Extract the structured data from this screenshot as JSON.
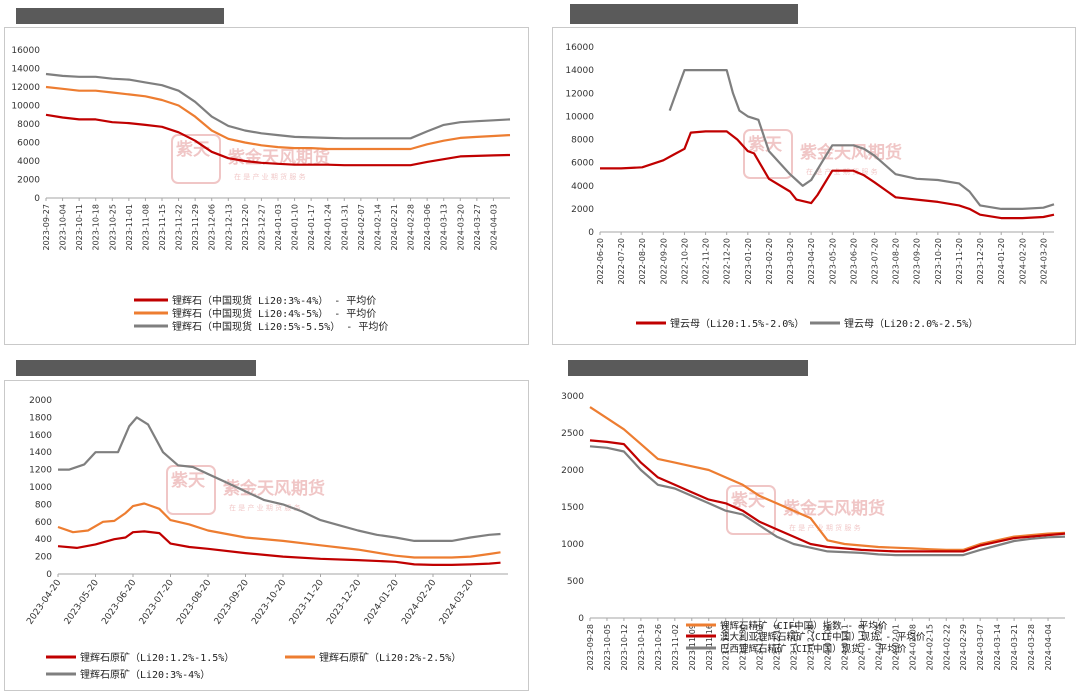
{
  "watermark": {
    "brand": "紫金天风期货",
    "slogan": "在 是 产 业 期 货 服 务",
    "seal": "紫天金风"
  },
  "chart_data": [
    {
      "type": "line",
      "title": "",
      "ylim": [
        0,
        16000
      ],
      "yticks": [
        "0",
        "2000",
        "4000",
        "6000",
        "8000",
        "10000",
        "12000",
        "14000",
        "16000"
      ],
      "xticks": [
        "2023-09-27",
        "2023-10-04",
        "2023-10-11",
        "2023-10-18",
        "2023-10-25",
        "2023-11-01",
        "2023-11-08",
        "2023-11-15",
        "2023-11-22",
        "2023-11-29",
        "2023-12-06",
        "2023-12-13",
        "2023-12-20",
        "2023-12-27",
        "2024-01-03",
        "2024-01-10",
        "2024-01-17",
        "2024-01-24",
        "2024-01-31",
        "2024-02-07",
        "2024-02-14",
        "2024-02-21",
        "2024-02-28",
        "2024-03-06",
        "2024-03-13",
        "2024-03-20",
        "2024-03-27",
        "2024-04-03"
      ],
      "series": [
        {
          "name": "锂辉石（中国现货 Li20:3%-4%） - 平均价",
          "color": "#c00000",
          "x": [
            0,
            1,
            2,
            3,
            4,
            5,
            6,
            7,
            8,
            9,
            10,
            11,
            12,
            13,
            14,
            15,
            16,
            17,
            18,
            19,
            20,
            21,
            22,
            23,
            24,
            25,
            26,
            27,
            28
          ],
          "values": [
            9000,
            8700,
            8500,
            8500,
            8200,
            8100,
            7900,
            7700,
            7100,
            6200,
            5000,
            4300,
            4000,
            3800,
            3700,
            3600,
            3600,
            3600,
            3550,
            3550,
            3550,
            3550,
            3550,
            3900,
            4200,
            4500,
            4550,
            4600,
            4650
          ]
        },
        {
          "name": "锂辉石（中国现货 Li20:4%-5%） - 平均价",
          "color": "#ed7d31",
          "x": [
            0,
            1,
            2,
            3,
            4,
            5,
            6,
            7,
            8,
            9,
            10,
            11,
            12,
            13,
            14,
            15,
            16,
            17,
            18,
            19,
            20,
            21,
            22,
            23,
            24,
            25,
            26,
            27,
            28
          ],
          "values": [
            12000,
            11800,
            11600,
            11600,
            11400,
            11200,
            11000,
            10600,
            10000,
            8800,
            7300,
            6400,
            6000,
            5700,
            5500,
            5400,
            5400,
            5300,
            5300,
            5300,
            5300,
            5300,
            5300,
            5800,
            6200,
            6500,
            6600,
            6700,
            6800
          ]
        },
        {
          "name": "锂辉石（中国现货 Li20:5%-5.5%） - 平均价",
          "color": "#7f7f7f",
          "x": [
            0,
            1,
            2,
            3,
            4,
            5,
            6,
            7,
            8,
            9,
            10,
            11,
            12,
            13,
            14,
            15,
            16,
            17,
            18,
            19,
            20,
            21,
            22,
            23,
            24,
            25,
            26,
            27,
            28
          ],
          "values": [
            13400,
            13200,
            13100,
            13100,
            12900,
            12800,
            12500,
            12200,
            11600,
            10400,
            8800,
            7800,
            7300,
            7000,
            6800,
            6600,
            6550,
            6500,
            6450,
            6450,
            6450,
            6450,
            6450,
            7200,
            7900,
            8200,
            8300,
            8400,
            8500
          ]
        }
      ]
    },
    {
      "type": "line",
      "title": "",
      "ylim": [
        0,
        16000
      ],
      "yticks": [
        "0",
        "2000",
        "4000",
        "6000",
        "8000",
        "10000",
        "12000",
        "14000",
        "16000"
      ],
      "xticks": [
        "2022-06-20",
        "2022-07-20",
        "2022-08-20",
        "2022-09-20",
        "2022-10-20",
        "2022-11-20",
        "2022-12-20",
        "2023-01-20",
        "2023-02-20",
        "2023-03-20",
        "2023-04-20",
        "2023-05-20",
        "2023-06-20",
        "2023-07-20",
        "2023-08-20",
        "2023-09-20",
        "2023-10-20",
        "2023-11-20",
        "2023-12-20",
        "2024-01-20",
        "2024-02-20",
        "2024-03-20"
      ],
      "series": [
        {
          "name": "锂云母（Li20:1.5%-2.0%）",
          "color": "#c00000",
          "x": [
            0,
            1,
            2,
            3,
            3.5,
            4,
            4.3,
            5,
            6,
            6.5,
            7,
            7.3,
            8,
            9,
            9.3,
            10,
            10.3,
            11,
            12,
            12.5,
            13,
            14,
            15,
            16,
            17,
            17.5,
            18,
            19,
            20,
            21,
            21.5
          ],
          "values": [
            5500,
            5500,
            5600,
            6200,
            6700,
            7200,
            8600,
            8700,
            8700,
            8000,
            7000,
            6800,
            4600,
            3500,
            2800,
            2500,
            3200,
            5300,
            5300,
            4900,
            4300,
            3000,
            2800,
            2600,
            2300,
            2000,
            1500,
            1200,
            1200,
            1300,
            1500
          ]
        },
        {
          "name": "锂云母（Li20:2.0%-2.5%）",
          "color": "#7f7f7f",
          "x": [
            3.3,
            3.5,
            3.8,
            4,
            5,
            6,
            6.3,
            6.6,
            7,
            7.5,
            8,
            9,
            9.3,
            9.6,
            10,
            10.5,
            11,
            12,
            12.5,
            13,
            14,
            15,
            16,
            17,
            17.5,
            18,
            19,
            20,
            21,
            21.5
          ],
          "values": [
            10500,
            11500,
            13000,
            14000,
            14000,
            14000,
            12000,
            10500,
            10000,
            9700,
            7000,
            5000,
            4500,
            4000,
            4500,
            6000,
            7500,
            7500,
            7200,
            6600,
            5000,
            4600,
            4500,
            4200,
            3500,
            2300,
            2000,
            2000,
            2100,
            2400
          ]
        }
      ]
    },
    {
      "type": "line",
      "title": "",
      "ylim": [
        0,
        2000
      ],
      "yticks": [
        "0",
        "200",
        "400",
        "600",
        "800",
        "1000",
        "1200",
        "1400",
        "1600",
        "1800",
        "2000"
      ],
      "xticks": [
        "2023-04-20",
        "2023-05-20",
        "2023-06-20",
        "2023-07-20",
        "2023-08-20",
        "2023-09-20",
        "2023-10-20",
        "2023-11-20",
        "2023-12-20",
        "2024-01-20",
        "2024-02-20",
        "2024-03-20"
      ],
      "series": [
        {
          "name": "锂辉石原矿（Li20:1.2%-1.5%）",
          "color": "#c00000",
          "x": [
            0,
            0.5,
            1,
            1.5,
            1.8,
            2,
            2.3,
            2.7,
            3,
            3.5,
            4,
            5,
            6,
            7,
            8,
            9,
            9.5,
            10,
            10.5,
            11,
            11.5,
            11.8
          ],
          "values": [
            320,
            300,
            340,
            400,
            420,
            480,
            490,
            470,
            350,
            310,
            290,
            240,
            200,
            175,
            160,
            140,
            110,
            105,
            105,
            110,
            120,
            130
          ]
        },
        {
          "name": "锂辉石原矿（Li20:2%-2.5%）",
          "color": "#ed7d31",
          "x": [
            0,
            0.4,
            0.8,
            1.2,
            1.5,
            1.8,
            2,
            2.3,
            2.7,
            3,
            3.5,
            4,
            5,
            6,
            7,
            8,
            9,
            9.5,
            10,
            10.5,
            11,
            11.5,
            11.8
          ],
          "values": [
            540,
            480,
            500,
            600,
            610,
            700,
            780,
            810,
            750,
            620,
            570,
            500,
            420,
            380,
            330,
            280,
            210,
            190,
            190,
            190,
            200,
            230,
            250
          ]
        },
        {
          "name": "锂辉石原矿（Li20:3%-4%）",
          "color": "#7f7f7f",
          "x": [
            0,
            0.3,
            0.7,
            1,
            1.3,
            1.6,
            1.9,
            2.1,
            2.4,
            2.8,
            3.2,
            3.6,
            4,
            4.5,
            5,
            5.5,
            6,
            6.5,
            7,
            7.5,
            8,
            8.5,
            9,
            9.5,
            10,
            10.5,
            11,
            11.5,
            11.8
          ],
          "values": [
            1200,
            1200,
            1260,
            1400,
            1400,
            1400,
            1700,
            1800,
            1720,
            1400,
            1250,
            1230,
            1150,
            1050,
            950,
            850,
            800,
            720,
            620,
            560,
            500,
            450,
            420,
            380,
            380,
            380,
            420,
            450,
            460
          ]
        }
      ]
    },
    {
      "type": "line",
      "title": "",
      "ylim": [
        0,
        3000
      ],
      "yticks": [
        "0",
        "500",
        "1000",
        "1500",
        "2000",
        "2500",
        "3000"
      ],
      "xticks": [
        "2023-09-28",
        "2023-10-05",
        "2023-10-12",
        "2023-10-19",
        "2023-10-26",
        "2023-11-02",
        "2023-11-09",
        "2023-11-16",
        "2023-11-23",
        "2023-11-30",
        "2023-12-07",
        "2023-12-14",
        "2023-12-21",
        "2023-12-28",
        "2024-01-04",
        "2024-01-11",
        "2024-01-18",
        "2024-01-25",
        "2024-02-01",
        "2024-02-08",
        "2024-02-15",
        "2024-02-22",
        "2024-02-29",
        "2024-03-07",
        "2024-03-14",
        "2024-03-21",
        "2024-03-28",
        "2024-04-04"
      ],
      "series": [
        {
          "name": "锂辉石精矿（CIF中国）指数 - 平均价",
          "color": "#ed7d31",
          "x": [
            0,
            1,
            2,
            3,
            4,
            5,
            6,
            7,
            8,
            9,
            10,
            11,
            12,
            13,
            14,
            15,
            16,
            17,
            18,
            19,
            20,
            21,
            22,
            23,
            24,
            25,
            26,
            27,
            28
          ],
          "values": [
            2850,
            2700,
            2550,
            2350,
            2150,
            2100,
            2050,
            2000,
            1900,
            1800,
            1650,
            1550,
            1450,
            1350,
            1050,
            1000,
            980,
            960,
            950,
            940,
            930,
            920,
            920,
            1000,
            1050,
            1100,
            1120,
            1140,
            1150
          ]
        },
        {
          "name": "澳大利亚锂辉石精矿（CIF中国）现货 - 平均价",
          "color": "#c00000",
          "x": [
            0,
            1,
            2,
            3,
            4,
            5,
            6,
            7,
            8,
            9,
            10,
            11,
            12,
            13,
            14,
            15,
            16,
            17,
            18,
            19,
            20,
            21,
            22,
            23,
            24,
            25,
            26,
            27,
            28
          ],
          "values": [
            2400,
            2380,
            2350,
            2100,
            1900,
            1800,
            1700,
            1600,
            1550,
            1450,
            1300,
            1200,
            1100,
            1000,
            960,
            940,
            920,
            910,
            900,
            900,
            900,
            900,
            900,
            980,
            1030,
            1080,
            1100,
            1120,
            1140
          ]
        },
        {
          "name": "巴西锂辉石精矿（CIF中国）现货 - 平均价",
          "color": "#7f7f7f",
          "x": [
            0,
            1,
            2,
            3,
            4,
            5,
            6,
            7,
            8,
            9,
            10,
            11,
            12,
            13,
            14,
            15,
            16,
            17,
            18,
            19,
            20,
            21,
            22,
            23,
            24,
            25,
            26,
            27,
            28
          ],
          "values": [
            2320,
            2300,
            2250,
            2000,
            1800,
            1750,
            1650,
            1550,
            1450,
            1400,
            1250,
            1100,
            1000,
            950,
            900,
            890,
            880,
            860,
            850,
            850,
            850,
            850,
            850,
            920,
            980,
            1040,
            1070,
            1090,
            1100
          ]
        }
      ]
    }
  ]
}
